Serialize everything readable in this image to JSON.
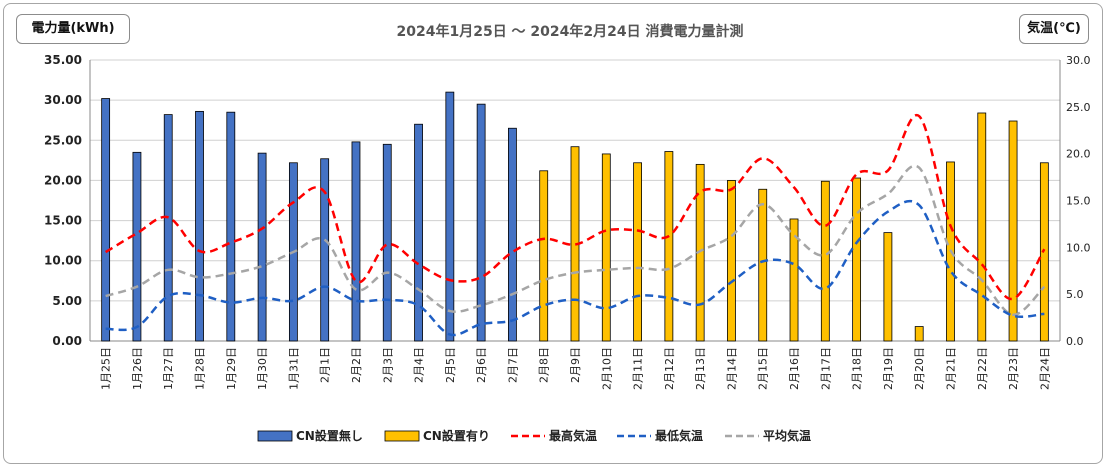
{
  "chart_data": {
    "type": "bar",
    "title": "2024年1月25日 ～ 2024年2月24日 消費電力量計測",
    "ylabel": "電力量(kWh)",
    "y2label": "気温(℃)",
    "ylim": [
      0,
      35
    ],
    "y2lim": [
      0,
      30
    ],
    "yticks": [
      "0.00",
      "5.00",
      "10.00",
      "15.00",
      "20.00",
      "25.00",
      "30.00",
      "35.00"
    ],
    "y2ticks": [
      "0.0",
      "5.0",
      "10.0",
      "15.0",
      "20.0",
      "25.0",
      "30.0"
    ],
    "categories": [
      "1月25日",
      "1月26日",
      "1月27日",
      "1月28日",
      "1月29日",
      "1月30日",
      "1月31日",
      "2月1日",
      "2月2日",
      "2月3日",
      "2月4日",
      "2月5日",
      "2月6日",
      "2月7日",
      "2月8日",
      "2月9日",
      "2月10日",
      "2月11日",
      "2月12日",
      "2月13日",
      "2月14日",
      "2月15日",
      "2月16日",
      "2月17日",
      "2月18日",
      "2月19日",
      "2月20日",
      "2月21日",
      "2月22日",
      "2月23日",
      "2月24日"
    ],
    "series": [
      {
        "name": "CN設置無し",
        "kind": "bar",
        "axis": "left",
        "color": "#4472c4",
        "values": [
          30.2,
          23.5,
          28.2,
          28.6,
          28.5,
          23.4,
          22.2,
          22.7,
          24.8,
          24.5,
          27.0,
          31.0,
          29.5,
          26.5,
          null,
          null,
          null,
          null,
          null,
          null,
          null,
          null,
          null,
          null,
          null,
          null,
          null,
          null,
          null,
          null,
          null
        ]
      },
      {
        "name": "CN設置有り",
        "kind": "bar",
        "axis": "left",
        "color": "#ffc000",
        "values": [
          null,
          null,
          null,
          null,
          null,
          null,
          null,
          null,
          null,
          null,
          null,
          null,
          null,
          null,
          21.2,
          24.2,
          23.3,
          22.2,
          23.6,
          22.0,
          20.0,
          18.9,
          15.2,
          19.9,
          20.3,
          13.5,
          1.8,
          22.3,
          28.4,
          27.4,
          22.2
        ]
      },
      {
        "name": "最高気温",
        "kind": "line",
        "axis": "right",
        "color": "#ff0000",
        "values": [
          9.5,
          11.5,
          13.2,
          9.6,
          10.5,
          12.0,
          14.8,
          15.9,
          6.4,
          10.3,
          8.2,
          6.5,
          6.8,
          9.5,
          10.9,
          10.3,
          11.8,
          11.8,
          11.2,
          15.9,
          16.2,
          19.5,
          16.4,
          12.3,
          17.8,
          18.2,
          24.0,
          12.3,
          8.2,
          4.5,
          9.8
        ]
      },
      {
        "name": "最低気温",
        "kind": "line",
        "axis": "right",
        "color": "#1f5fc4",
        "values": [
          1.3,
          1.5,
          4.8,
          4.9,
          4.1,
          4.6,
          4.3,
          5.8,
          4.3,
          4.4,
          3.8,
          0.7,
          1.8,
          2.2,
          3.8,
          4.4,
          3.5,
          4.8,
          4.6,
          3.9,
          6.3,
          8.5,
          8.2,
          5.6,
          10.5,
          13.8,
          14.5,
          7.5,
          4.9,
          2.7,
          2.9
        ]
      },
      {
        "name": "平均気温",
        "kind": "line",
        "axis": "right",
        "color": "#a6a6a6",
        "values": [
          4.8,
          5.8,
          7.6,
          6.8,
          7.2,
          8.0,
          9.5,
          10.8,
          5.5,
          7.3,
          5.5,
          3.2,
          3.8,
          5.0,
          6.5,
          7.3,
          7.6,
          7.8,
          7.7,
          9.6,
          11.2,
          14.6,
          11.3,
          9.2,
          13.6,
          15.7,
          18.5,
          9.7,
          6.5,
          2.8,
          5.8
        ]
      }
    ]
  }
}
